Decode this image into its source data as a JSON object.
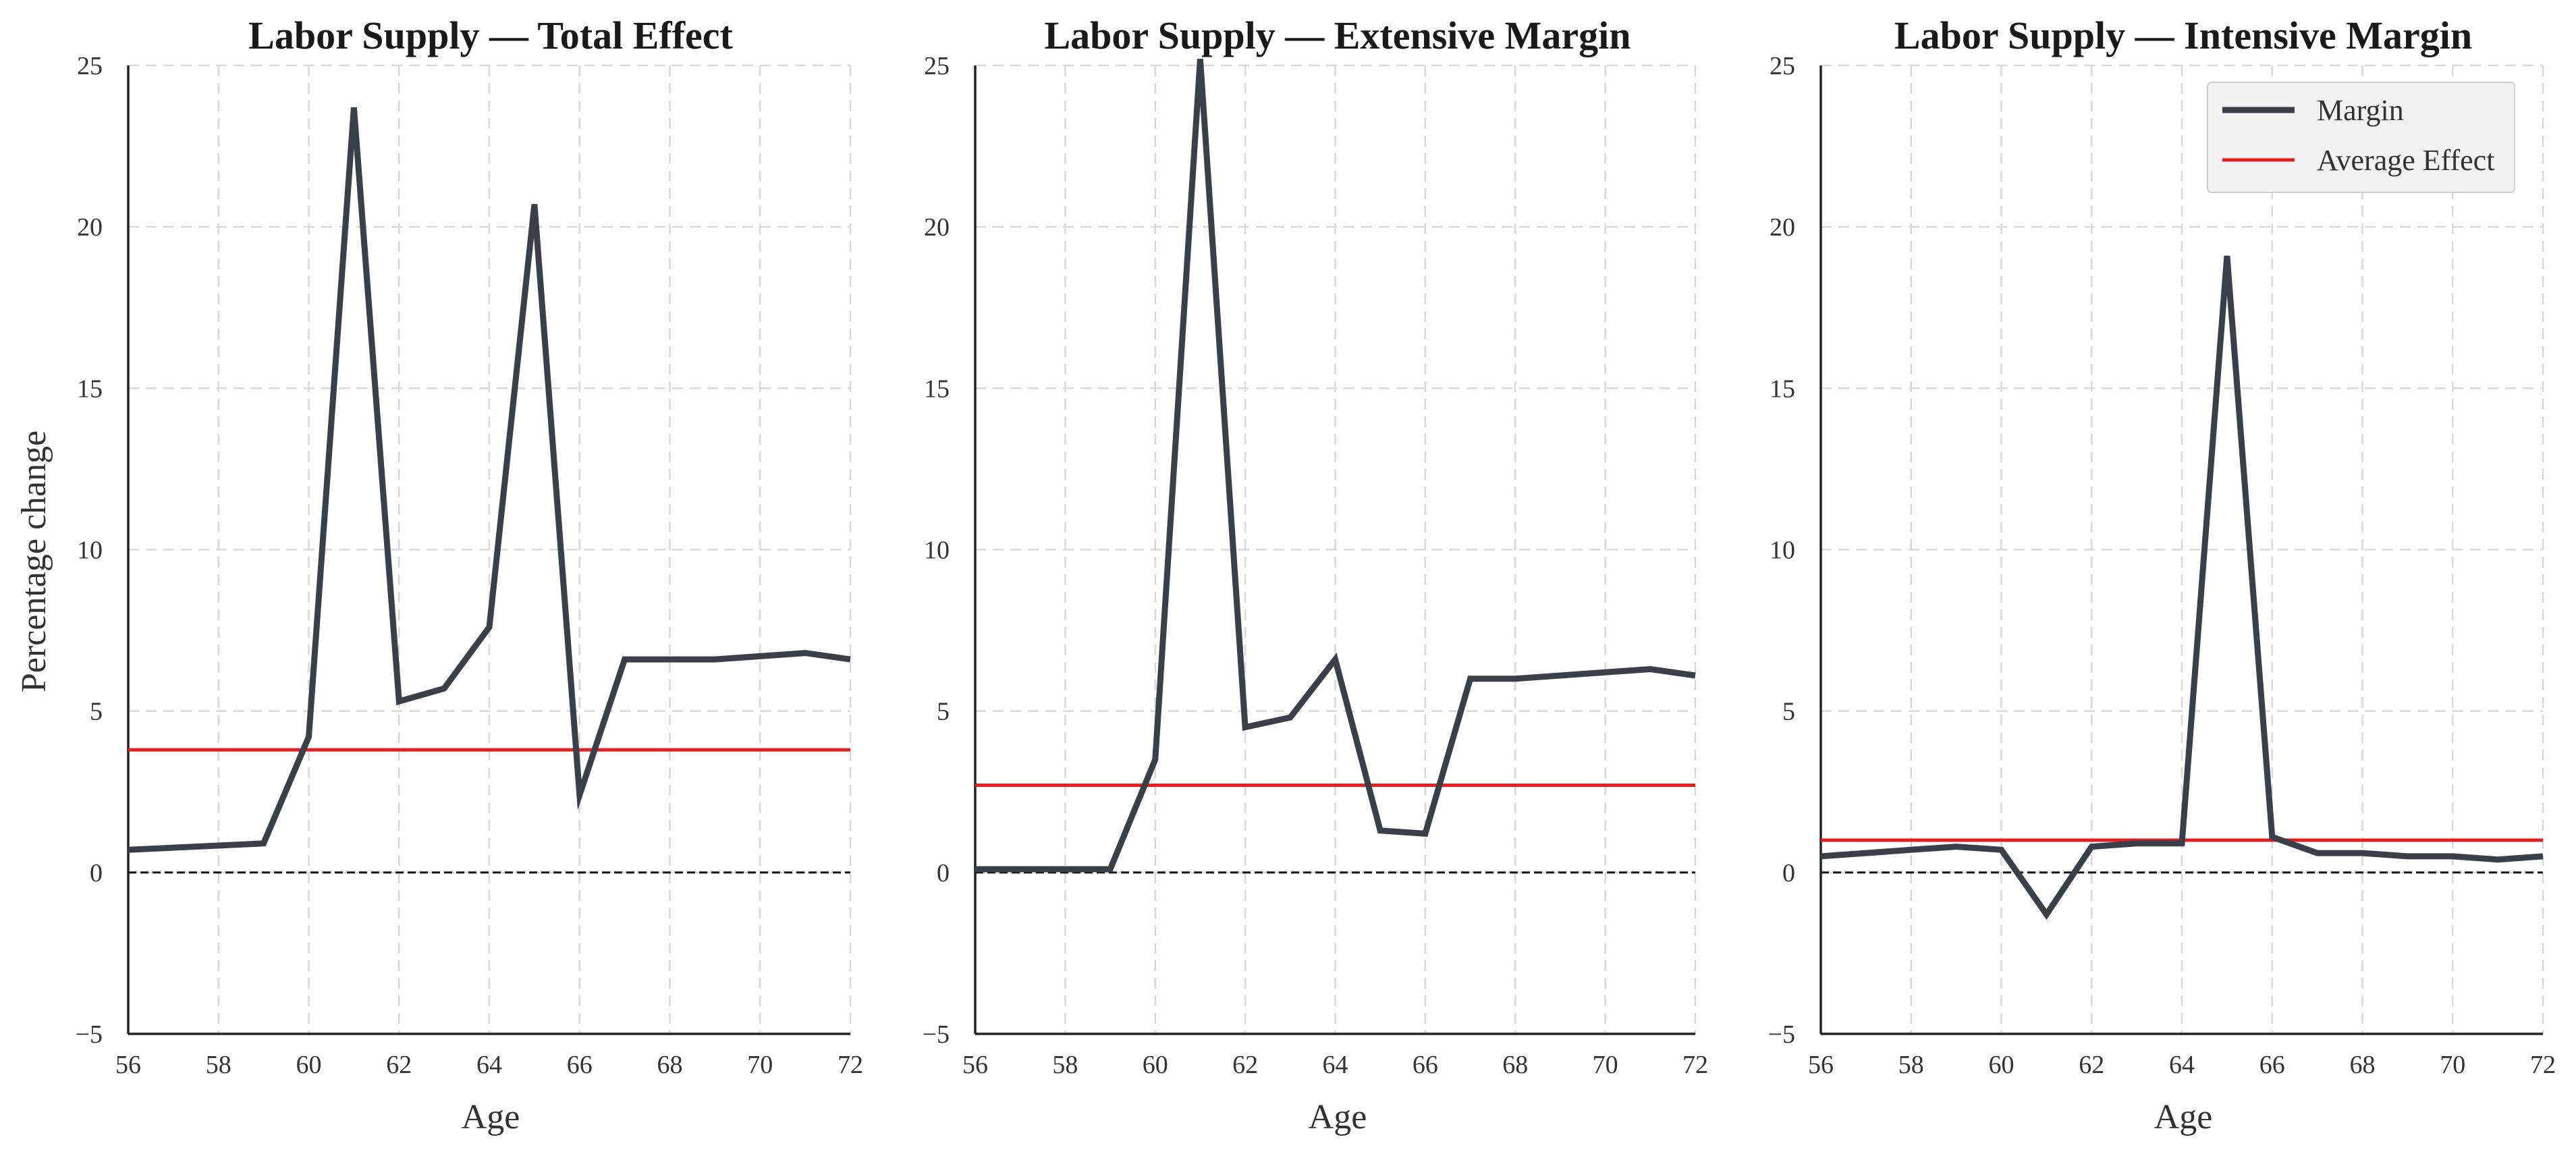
{
  "chart_data": [
    {
      "type": "line",
      "title": "Labor Supply — Total Effect",
      "xlabel": "Age",
      "ylabel": "Percentage change",
      "xlim": [
        56,
        72
      ],
      "ylim": [
        -5,
        25
      ],
      "xticks": [
        "56",
        "58",
        "60",
        "62",
        "64",
        "66",
        "68",
        "70",
        "72"
      ],
      "yticks": [
        "−5",
        "0",
        "5",
        "10",
        "15",
        "20",
        "25"
      ],
      "grid": true,
      "x": [
        56,
        59,
        60,
        61,
        62,
        63,
        64,
        65,
        66,
        67,
        68,
        69,
        70,
        71,
        72
      ],
      "series": [
        {
          "name": "Margin",
          "color": "#3b3f4a",
          "values": [
            0.7,
            0.9,
            4.2,
            23.7,
            5.3,
            5.7,
            7.6,
            20.7,
            2.4,
            6.6,
            6.6,
            6.6,
            6.7,
            6.8,
            6.6
          ]
        }
      ],
      "average_effect": 3.8,
      "zero_line": 0
    },
    {
      "type": "line",
      "title": "Labor Supply — Extensive Margin",
      "xlabel": "Age",
      "ylabel": "",
      "xlim": [
        56,
        72
      ],
      "ylim": [
        -5,
        25
      ],
      "xticks": [
        "56",
        "58",
        "60",
        "62",
        "64",
        "66",
        "68",
        "70",
        "72"
      ],
      "yticks": [
        "−5",
        "0",
        "5",
        "10",
        "15",
        "20",
        "25"
      ],
      "grid": true,
      "x": [
        56,
        57,
        58,
        59,
        60,
        61,
        62,
        63,
        64,
        65,
        66,
        67,
        68,
        69,
        70,
        71,
        72
      ],
      "series": [
        {
          "name": "Margin",
          "color": "#3b3f4a",
          "values": [
            0.1,
            0.1,
            0.1,
            0.1,
            3.5,
            25.2,
            4.5,
            4.8,
            6.6,
            1.3,
            1.2,
            6.0,
            6.0,
            6.1,
            6.2,
            6.3,
            6.1
          ]
        }
      ],
      "average_effect": 2.7,
      "zero_line": 0
    },
    {
      "type": "line",
      "title": "Labor Supply — Intensive Margin",
      "xlabel": "Age",
      "ylabel": "",
      "xlim": [
        56,
        72
      ],
      "ylim": [
        -5,
        25
      ],
      "xticks": [
        "56",
        "58",
        "60",
        "62",
        "64",
        "66",
        "68",
        "70",
        "72"
      ],
      "yticks": [
        "−5",
        "0",
        "5",
        "10",
        "15",
        "20",
        "25"
      ],
      "grid": true,
      "x": [
        56,
        57,
        58,
        59,
        60,
        61,
        62,
        63,
        64,
        65,
        66,
        67,
        68,
        69,
        70,
        71,
        72
      ],
      "series": [
        {
          "name": "Margin",
          "color": "#3b3f4a",
          "values": [
            0.5,
            0.6,
            0.7,
            0.8,
            0.7,
            -1.3,
            0.8,
            0.9,
            0.9,
            19.1,
            1.1,
            0.6,
            0.6,
            0.5,
            0.5,
            0.4,
            0.5
          ]
        }
      ],
      "average_effect": 1.0,
      "zero_line": 0,
      "legend": {
        "position": "top-right",
        "entries": [
          {
            "label": "Margin",
            "color": "#3b3f4a"
          },
          {
            "label": "Average Effect",
            "color": "#e02020"
          }
        ]
      }
    }
  ],
  "colors": {
    "margin_line": "#3b3f4a",
    "average_line": "#e02020",
    "zero_line": "#111111",
    "grid": "#d9d9d9",
    "axis": "#222222"
  }
}
